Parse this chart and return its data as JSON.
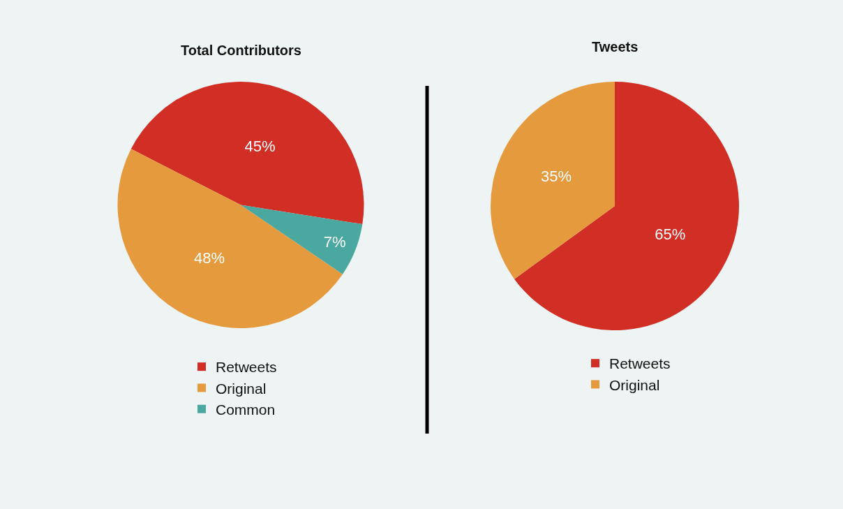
{
  "chart_data": [
    {
      "type": "pie",
      "title": "Total Contributors",
      "categories": [
        "Retweets",
        "Original",
        "Common"
      ],
      "values": [
        45,
        48,
        7
      ],
      "value_labels": [
        "45%",
        "48%",
        "7%"
      ],
      "colors": [
        "#d12e26",
        "#e69a3e",
        "#4ba8a0"
      ],
      "legend": "bottom"
    },
    {
      "type": "pie",
      "title": "Tweets",
      "categories": [
        "Retweets",
        "Original"
      ],
      "values": [
        65,
        35
      ],
      "value_labels": [
        "65%",
        "35%"
      ],
      "colors": [
        "#d12e26",
        "#e69a3e"
      ],
      "legend": "bottom"
    }
  ]
}
